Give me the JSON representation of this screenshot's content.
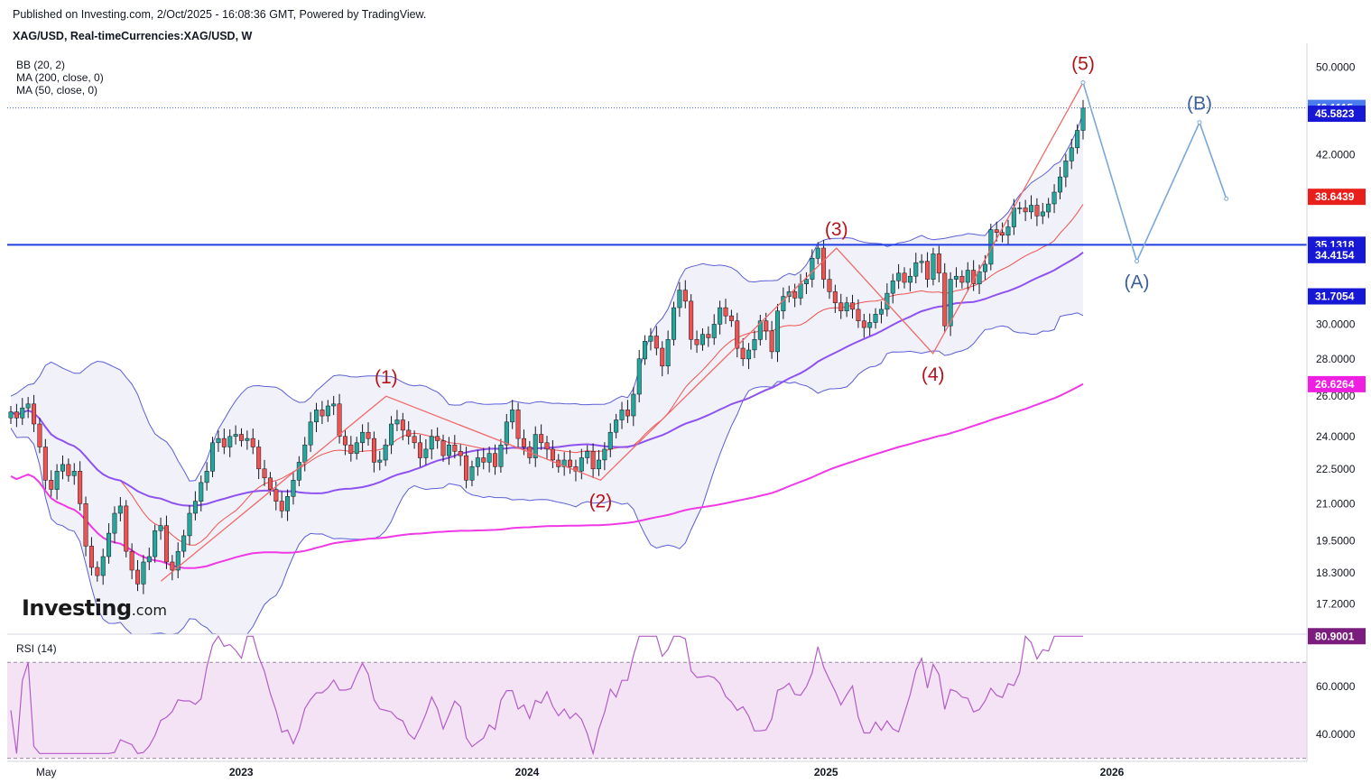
{
  "header": {
    "published": "Published on Investing.com, 2/Oct/2025 - 16:08:36 GMT, Powered by TradingView.",
    "symbol": "XAG/USD, Real-timeCurrencies:XAG/USD, W"
  },
  "indicators": {
    "bb": "BB (20, 2)",
    "ma200": "MA (200, close, 0)",
    "ma50": "MA (50, close, 0)",
    "rsi": "RSI (14)"
  },
  "logo": {
    "main": "Investing",
    "suffix": ".com"
  },
  "colors": {
    "up": "#26a69a",
    "down": "#ef5350",
    "bb": "#5a5fd6",
    "ma50": "#8e52f0",
    "ma200": "#f039e6",
    "rsi": "#b45cc7",
    "wave": "#f06a6a",
    "projection": "#7aa8d8",
    "hline": "#1f3fe0"
  },
  "chart_data": {
    "type": "line",
    "title": "XAG/USD, Real-timeCurrencies:XAG/USD, W",
    "x_ticks": [
      "May",
      "2023",
      "2024",
      "2025",
      "2026"
    ],
    "y_ticks": [
      "17.2000",
      "18.3000",
      "19.5000",
      "21.0000",
      "22.5000",
      "24.0000",
      "26.0000",
      "28.0000",
      "30.0000",
      "42.0000",
      "50.0000"
    ],
    "ylim": [
      16.2,
      51.5
    ],
    "rsi_ticks": [
      "40.0000",
      "60.0000"
    ],
    "rsi_ylim": [
      31,
      81
    ],
    "price_badges": [
      {
        "value": "46.1115",
        "color": "#4a7cf0"
      },
      {
        "value": "45.5823",
        "color": "#1717d6"
      },
      {
        "value": "38.6439",
        "color": "#e8201c"
      },
      {
        "value": "35.1318",
        "color": "#1717d6"
      },
      {
        "value": "34.4154",
        "color": "#1717d6"
      },
      {
        "value": "31.7054",
        "color": "#1717d6"
      },
      {
        "value": "26.6264",
        "color": "#ee1fe0"
      }
    ],
    "rsi_badge": "80.9001",
    "support_level": 35.13,
    "current_price": 46.11,
    "wave_labels": [
      {
        "label": "(1)",
        "price": 26.0
      },
      {
        "label": "(2)",
        "price": 22.0
      },
      {
        "label": "(3)",
        "price": 34.9
      },
      {
        "label": "(4)",
        "price": 28.3
      },
      {
        "label": "(5)",
        "price": 48.5
      },
      {
        "label": "(A)",
        "price": 34.0
      },
      {
        "label": "(B)",
        "price": 44.8
      }
    ],
    "wave_path": [
      [
        0.14,
        18.0
      ],
      [
        0.35,
        26.0
      ],
      [
        0.55,
        22.0
      ],
      [
        0.77,
        34.9
      ],
      [
        0.86,
        28.3
      ],
      [
        1.0,
        48.5
      ]
    ],
    "projection": [
      [
        0.0,
        48.5
      ],
      [
        0.24,
        34.0
      ],
      [
        0.52,
        44.8
      ],
      [
        0.64,
        38.5
      ]
    ],
    "close": [
      25.2,
      24.9,
      25.4,
      25.6,
      24.6,
      23.5,
      22.0,
      21.6,
      22.4,
      22.7,
      22.2,
      22.4,
      21.0,
      19.3,
      18.5,
      18.2,
      18.9,
      19.8,
      20.6,
      20.9,
      19.1,
      18.4,
      17.9,
      18.7,
      18.9,
      19.9,
      20.1,
      18.7,
      18.4,
      19.1,
      19.7,
      20.6,
      21.1,
      21.9,
      22.4,
      23.7,
      23.9,
      23.5,
      24.0,
      24.1,
      23.8,
      23.9,
      23.5,
      22.5,
      22.1,
      21.6,
      21.1,
      20.7,
      21.3,
      22.0,
      22.8,
      23.6,
      24.7,
      25.3,
      25.0,
      25.5,
      25.6,
      24.0,
      23.6,
      23.2,
      23.7,
      24.2,
      23.9,
      22.8,
      22.9,
      23.6,
      24.6,
      24.8,
      24.3,
      24.0,
      23.7,
      23.0,
      23.4,
      24.0,
      23.8,
      23.1,
      23.6,
      23.3,
      23.1,
      22.0,
      22.6,
      23.0,
      22.8,
      23.2,
      22.6,
      23.6,
      24.7,
      25.3,
      23.9,
      23.5,
      23.0,
      24.1,
      23.7,
      23.4,
      22.9,
      22.6,
      22.9,
      22.6,
      22.4,
      23.0,
      23.3,
      22.5,
      22.9,
      23.4,
      24.2,
      24.8,
      25.3,
      25.0,
      26.1,
      28.0,
      29.0,
      29.3,
      28.6,
      27.6,
      29.1,
      31.0,
      32.1,
      31.4,
      29.1,
      28.8,
      29.4,
      29.2,
      30.0,
      31.0,
      30.5,
      30.2,
      28.6,
      28.0,
      28.5,
      29.1,
      30.2,
      29.6,
      28.4,
      30.8,
      31.7,
      32.0,
      31.6,
      32.5,
      32.8,
      34.2,
      34.9,
      32.8,
      32.0,
      31.3,
      30.8,
      31.3,
      30.9,
      30.2,
      29.8,
      30.1,
      30.6,
      30.9,
      31.9,
      32.7,
      33.2,
      32.6,
      33.0,
      33.9,
      34.0,
      32.8,
      34.5,
      33.2,
      29.9,
      32.8,
      33.0,
      32.6,
      33.4,
      32.5,
      33.3,
      33.8,
      36.2,
      36.0,
      35.8,
      36.4,
      37.8,
      37.8,
      37.5,
      38.0,
      37.2,
      37.5,
      38.1,
      39.0,
      40.2,
      41.5,
      42.6,
      44.1,
      46.1
    ]
  }
}
